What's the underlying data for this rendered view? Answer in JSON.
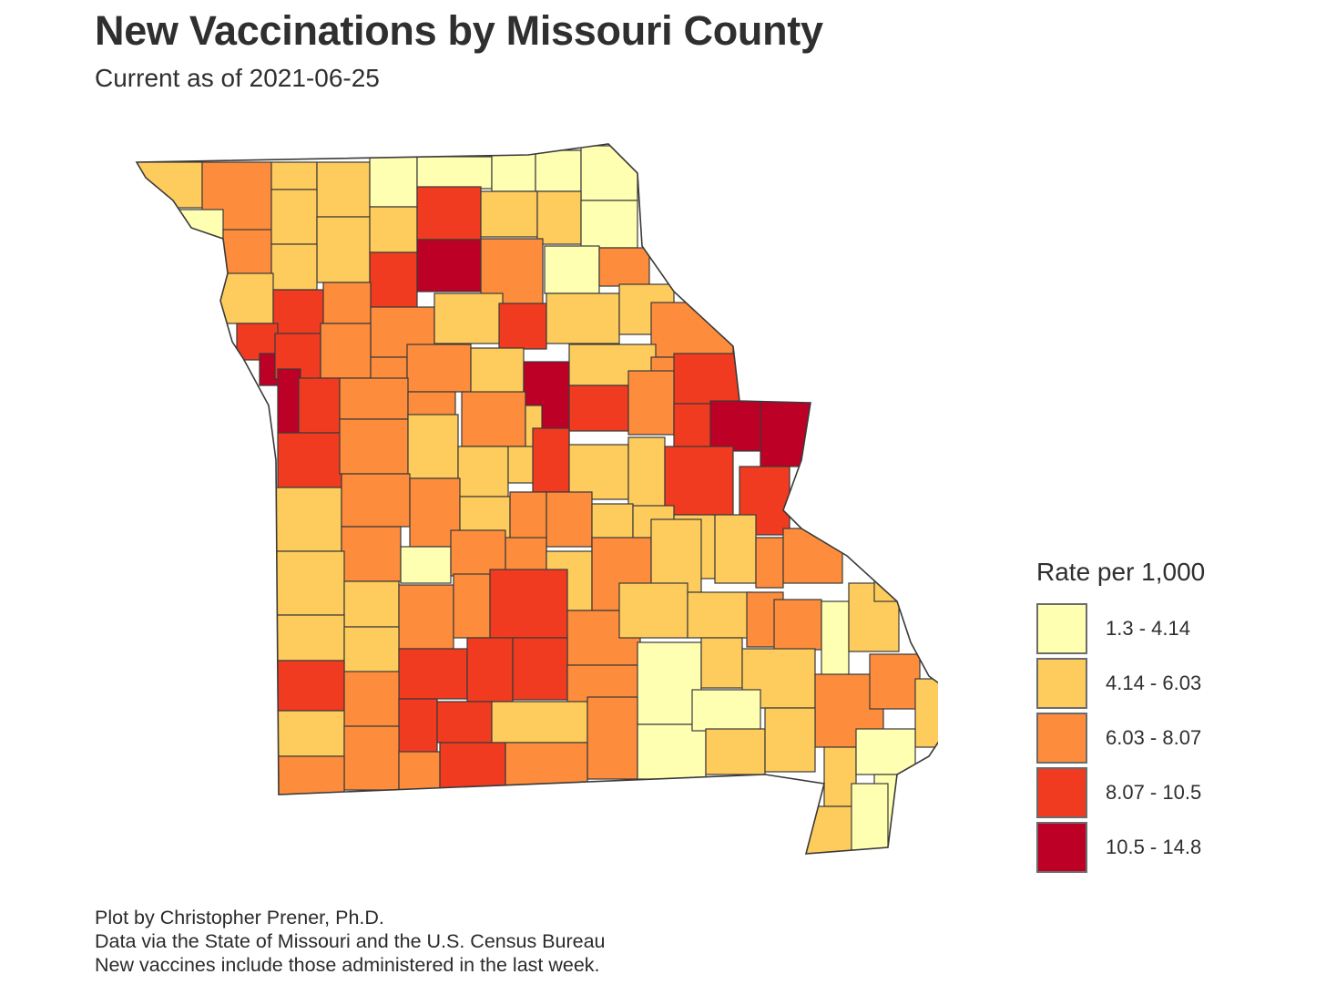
{
  "title": "New Vaccinations by Missouri County",
  "subtitle": "Current as of 2021-06-25",
  "legend": {
    "title": "Rate per 1,000",
    "items": [
      {
        "label": "1.3 - 4.14",
        "color": "#ffffb2"
      },
      {
        "label": "4.14 - 6.03",
        "color": "#fecc5c"
      },
      {
        "label": "6.03 - 8.07",
        "color": "#fd8d3c"
      },
      {
        "label": "8.07 - 10.5",
        "color": "#f03b20"
      },
      {
        "label": "10.5 - 14.8",
        "color": "#bd0026"
      }
    ]
  },
  "caption": [
    "Plot by Christopher Prener, Ph.D.",
    "Data via the State of Missouri and the U.S. Census Bureau",
    "New vaccines include those administered in the last week."
  ],
  "map": {
    "type": "choropleth",
    "region": "Missouri counties",
    "border_color": "#3a3a3a"
  }
}
